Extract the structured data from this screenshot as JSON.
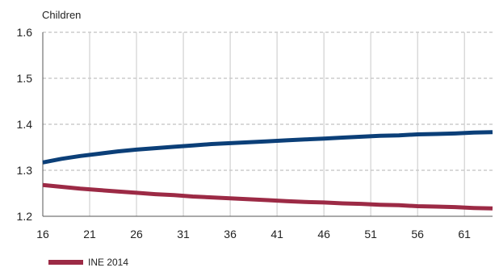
{
  "chart_data": {
    "type": "line",
    "ylabel": "Children",
    "xlabel": "",
    "xlim": [
      16,
      64
    ],
    "ylim": [
      1.2,
      1.6
    ],
    "xticks": [
      16,
      21,
      26,
      31,
      36,
      41,
      46,
      51,
      56,
      61
    ],
    "yticks": [
      1.2,
      1.3,
      1.4,
      1.5,
      1.6
    ],
    "ytick_labels": [
      "1.2",
      "1.3",
      "1.4",
      "1.5",
      "1.6"
    ],
    "grid": true,
    "legend_position": "bottom-left",
    "series": [
      {
        "name": "",
        "color": "#0b3f78",
        "in_legend": false,
        "x": [
          16,
          18,
          20,
          22,
          24,
          26,
          28,
          30,
          32,
          34,
          36,
          38,
          40,
          42,
          44,
          46,
          48,
          50,
          52,
          54,
          56,
          58,
          60,
          62,
          64
        ],
        "y": [
          1.317,
          1.325,
          1.331,
          1.336,
          1.341,
          1.345,
          1.348,
          1.351,
          1.354,
          1.357,
          1.359,
          1.361,
          1.363,
          1.365,
          1.367,
          1.369,
          1.371,
          1.373,
          1.375,
          1.376,
          1.378,
          1.379,
          1.38,
          1.382,
          1.383
        ]
      },
      {
        "name": "INE 2014",
        "color": "#9c2a45",
        "in_legend": true,
        "x": [
          16,
          18,
          20,
          22,
          24,
          26,
          28,
          30,
          32,
          34,
          36,
          38,
          40,
          42,
          44,
          46,
          48,
          50,
          52,
          54,
          56,
          58,
          60,
          62,
          64
        ],
        "y": [
          1.268,
          1.264,
          1.26,
          1.257,
          1.254,
          1.251,
          1.248,
          1.246,
          1.243,
          1.241,
          1.239,
          1.237,
          1.235,
          1.233,
          1.231,
          1.23,
          1.228,
          1.227,
          1.225,
          1.224,
          1.222,
          1.221,
          1.22,
          1.218,
          1.217
        ]
      }
    ]
  }
}
